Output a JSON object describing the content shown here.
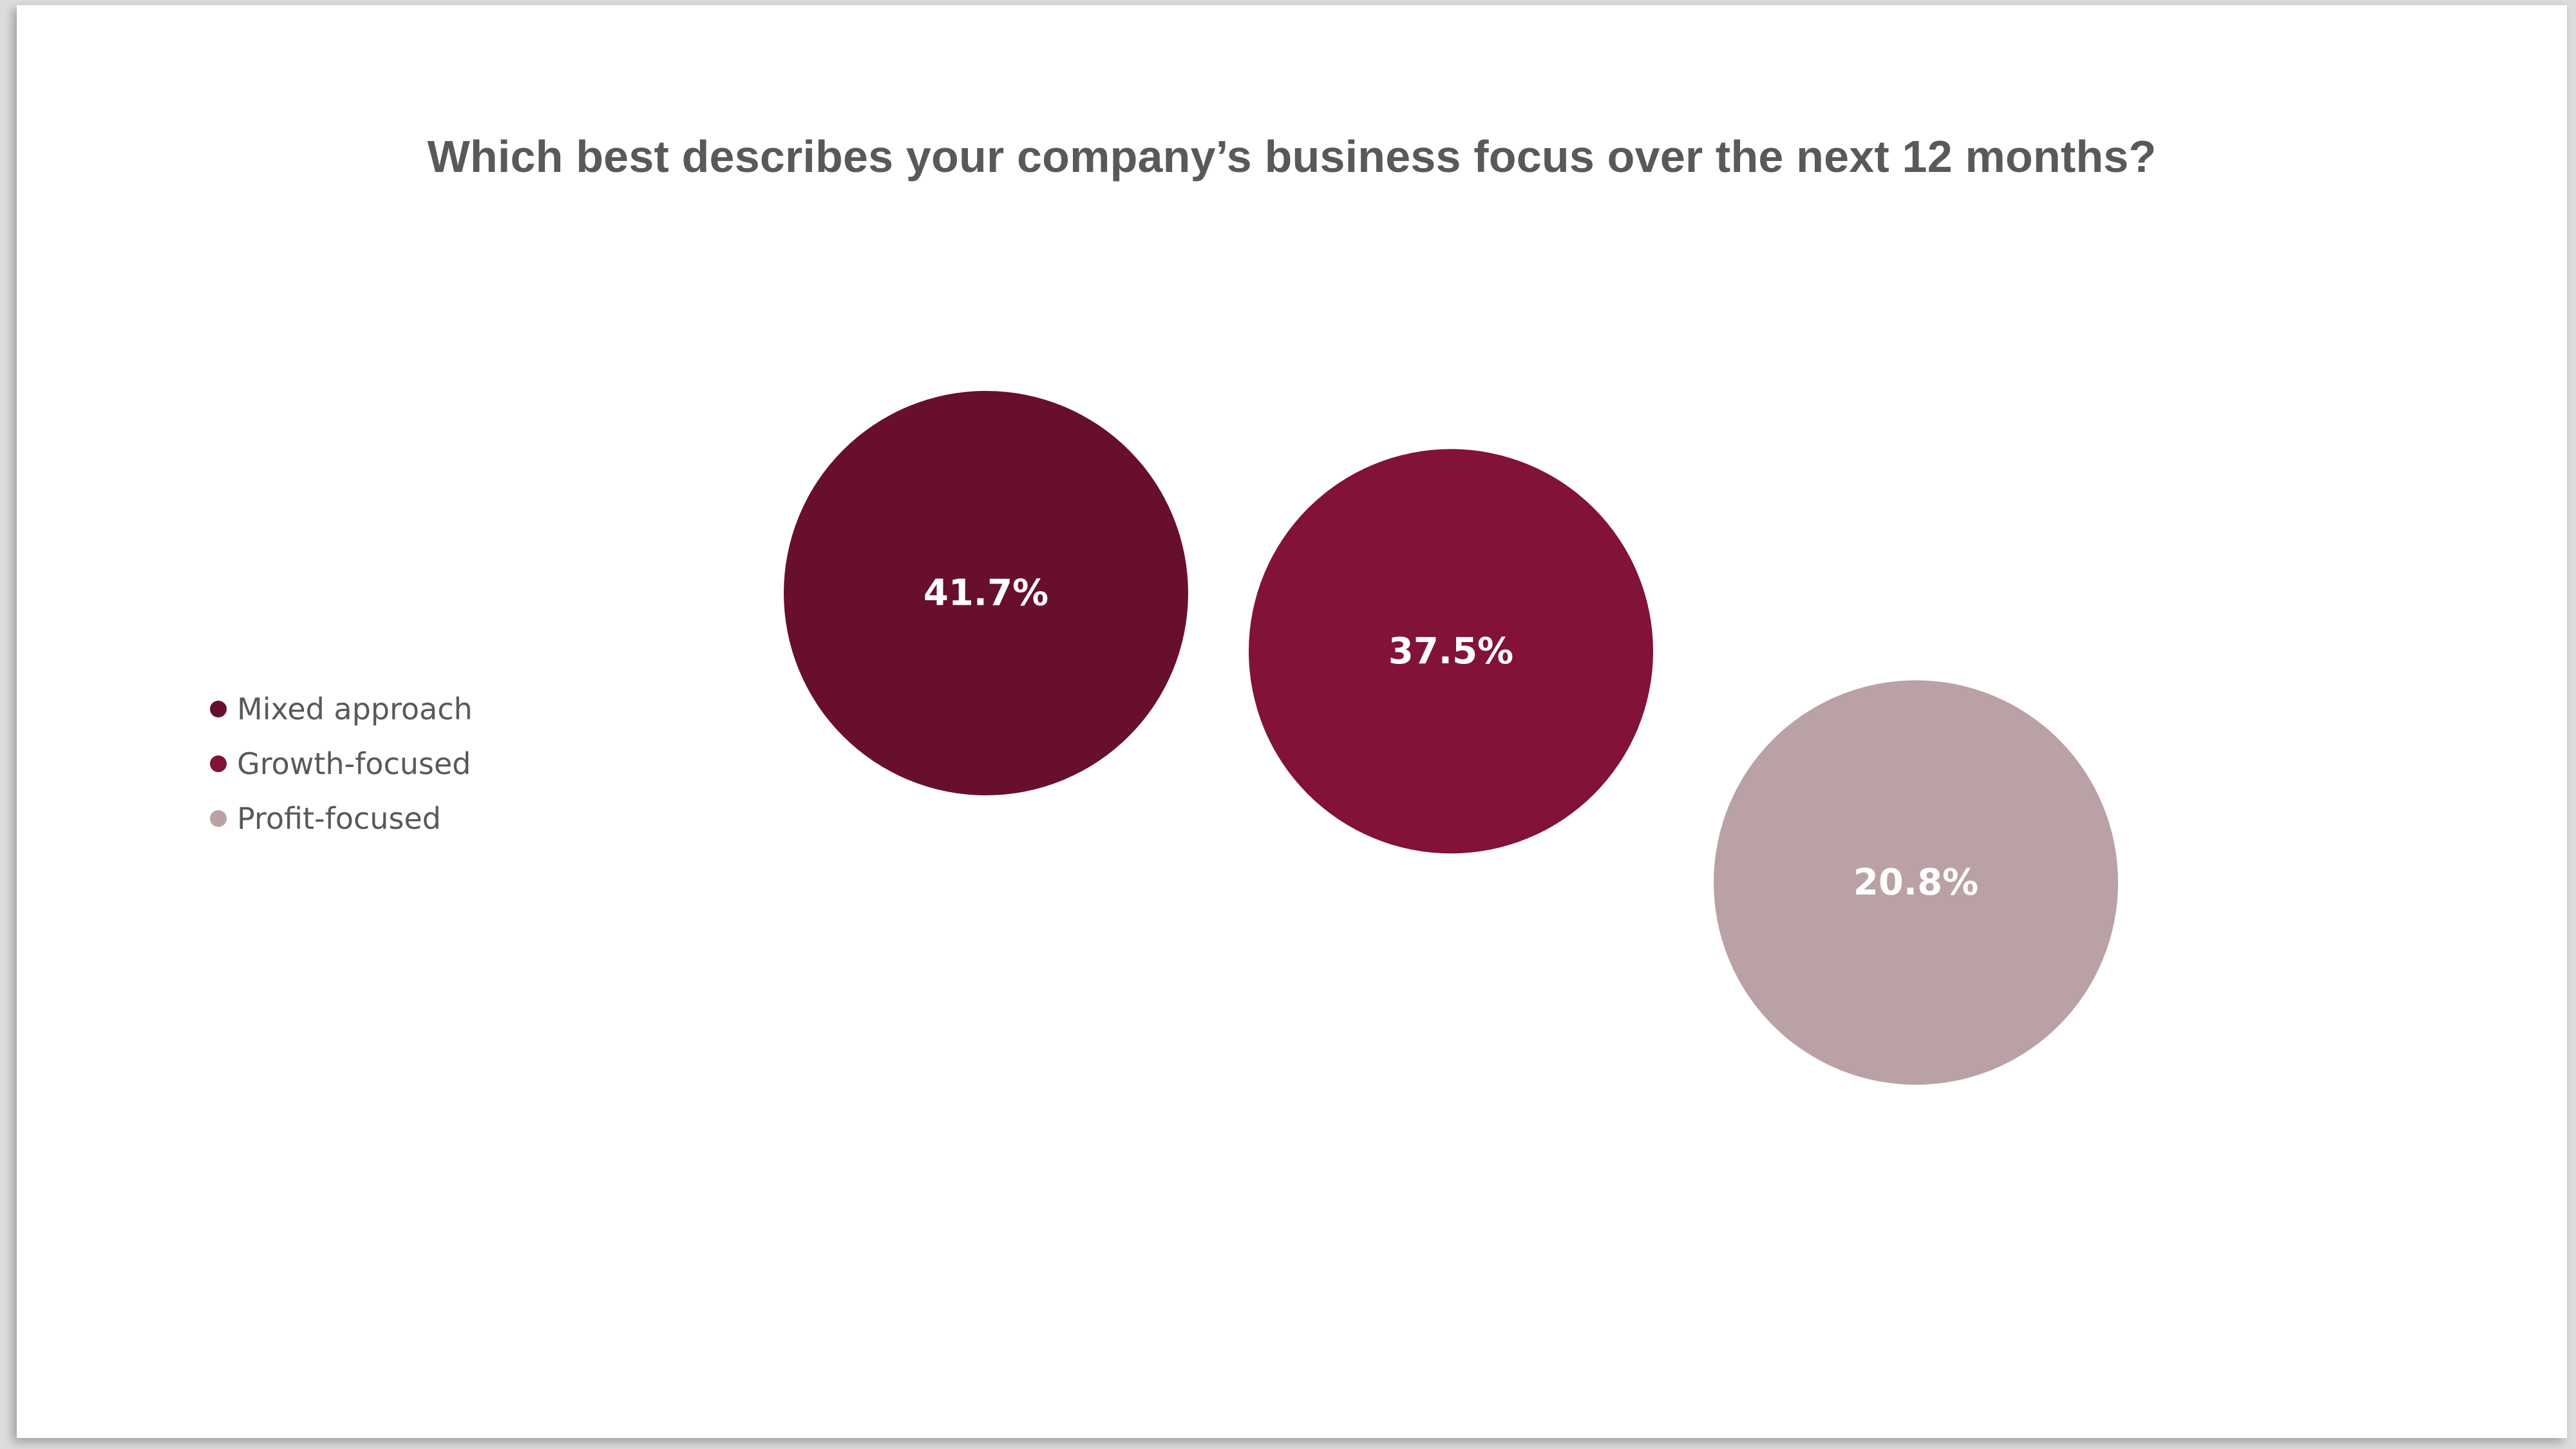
{
  "chart_data": {
    "type": "bubble",
    "title": "Which best describes your company’s business focus over the next 12 months?",
    "legend_position": "left",
    "series": [
      {
        "name": "Mixed approach",
        "value": 41.7,
        "label": "41.7%",
        "color": "#680e2e"
      },
      {
        "name": "Growth-focused",
        "value": 37.5,
        "label": "37.5%",
        "color": "#82123a"
      },
      {
        "name": "Profit-focused",
        "value": 20.8,
        "label": "20.8%",
        "color": "#baa1a5"
      }
    ]
  }
}
